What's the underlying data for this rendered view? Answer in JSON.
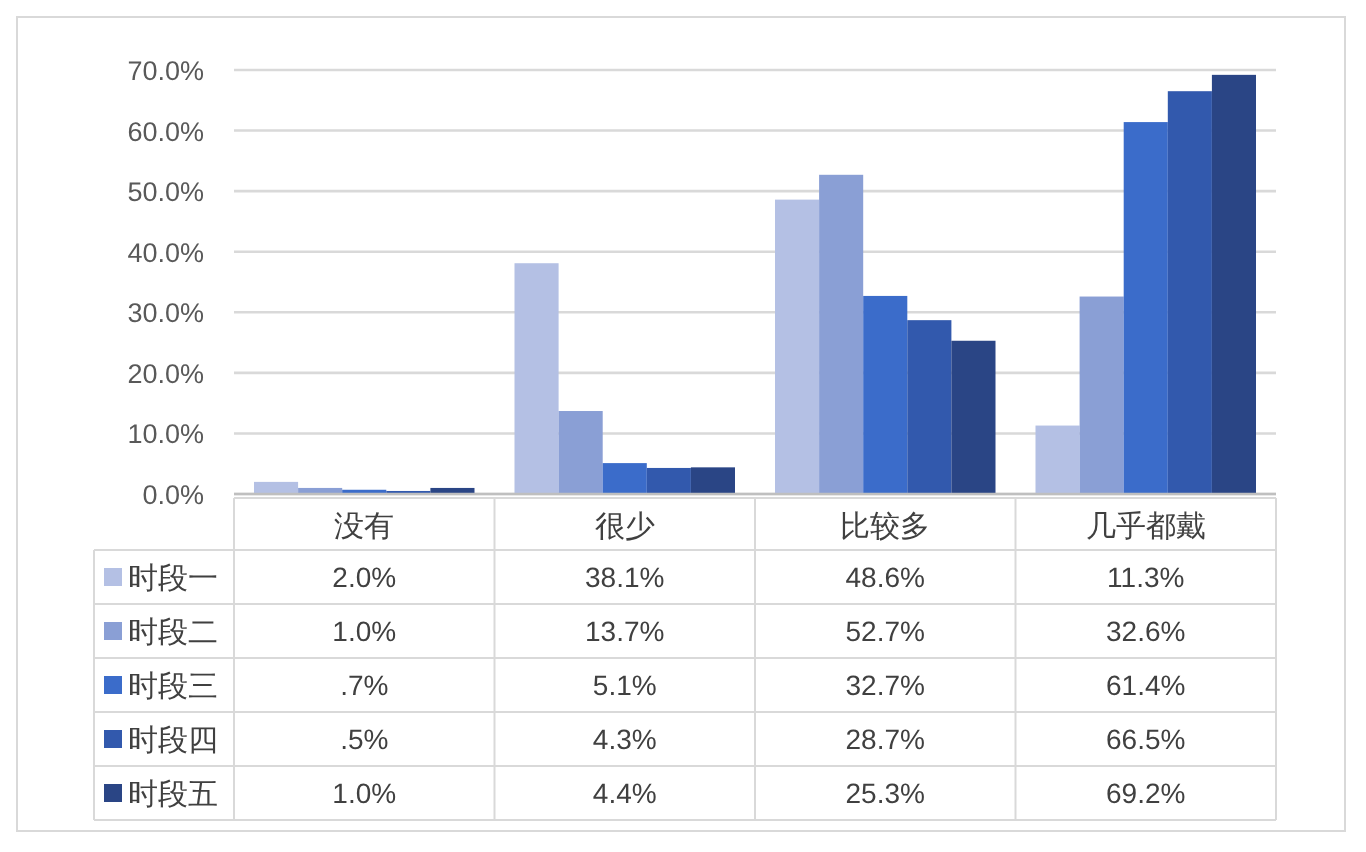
{
  "chart_data": {
    "type": "bar",
    "categories": [
      "没有",
      "很少",
      "比较多",
      "几乎都戴"
    ],
    "series": [
      {
        "name": "时段一",
        "color": "#b4c0e4",
        "values": [
          2.0,
          38.1,
          48.6,
          11.3
        ],
        "value_labels": [
          "2.0%",
          "38.1%",
          "48.6%",
          "11.3%"
        ]
      },
      {
        "name": "时段二",
        "color": "#8a9fd5",
        "values": [
          1.0,
          13.7,
          52.7,
          32.6
        ],
        "value_labels": [
          "1.0%",
          "13.7%",
          "52.7%",
          "32.6%"
        ]
      },
      {
        "name": "时段三",
        "color": "#3b6cca",
        "values": [
          0.7,
          5.1,
          32.7,
          61.4
        ],
        "value_labels": [
          ".7%",
          "5.1%",
          "32.7%",
          "61.4%"
        ]
      },
      {
        "name": "时段四",
        "color": "#3259ad",
        "values": [
          0.5,
          4.3,
          28.7,
          66.5
        ],
        "value_labels": [
          ".5%",
          "4.3%",
          "28.7%",
          "66.5%"
        ]
      },
      {
        "name": "时段五",
        "color": "#2a4585",
        "values": [
          1.0,
          4.4,
          25.3,
          69.2
        ],
        "value_labels": [
          "1.0%",
          "4.4%",
          "25.3%",
          "69.2%"
        ]
      }
    ],
    "ylim": [
      0,
      70
    ],
    "yticks": [
      {
        "value": 0,
        "label": "0.0%"
      },
      {
        "value": 10,
        "label": "10.0%"
      },
      {
        "value": 20,
        "label": "20.0%"
      },
      {
        "value": 30,
        "label": "30.0%"
      },
      {
        "value": 40,
        "label": "40.0%"
      },
      {
        "value": 50,
        "label": "50.0%"
      },
      {
        "value": 60,
        "label": "60.0%"
      },
      {
        "value": 70,
        "label": "70.0%"
      }
    ],
    "grid": "y",
    "legend": "bottom"
  }
}
